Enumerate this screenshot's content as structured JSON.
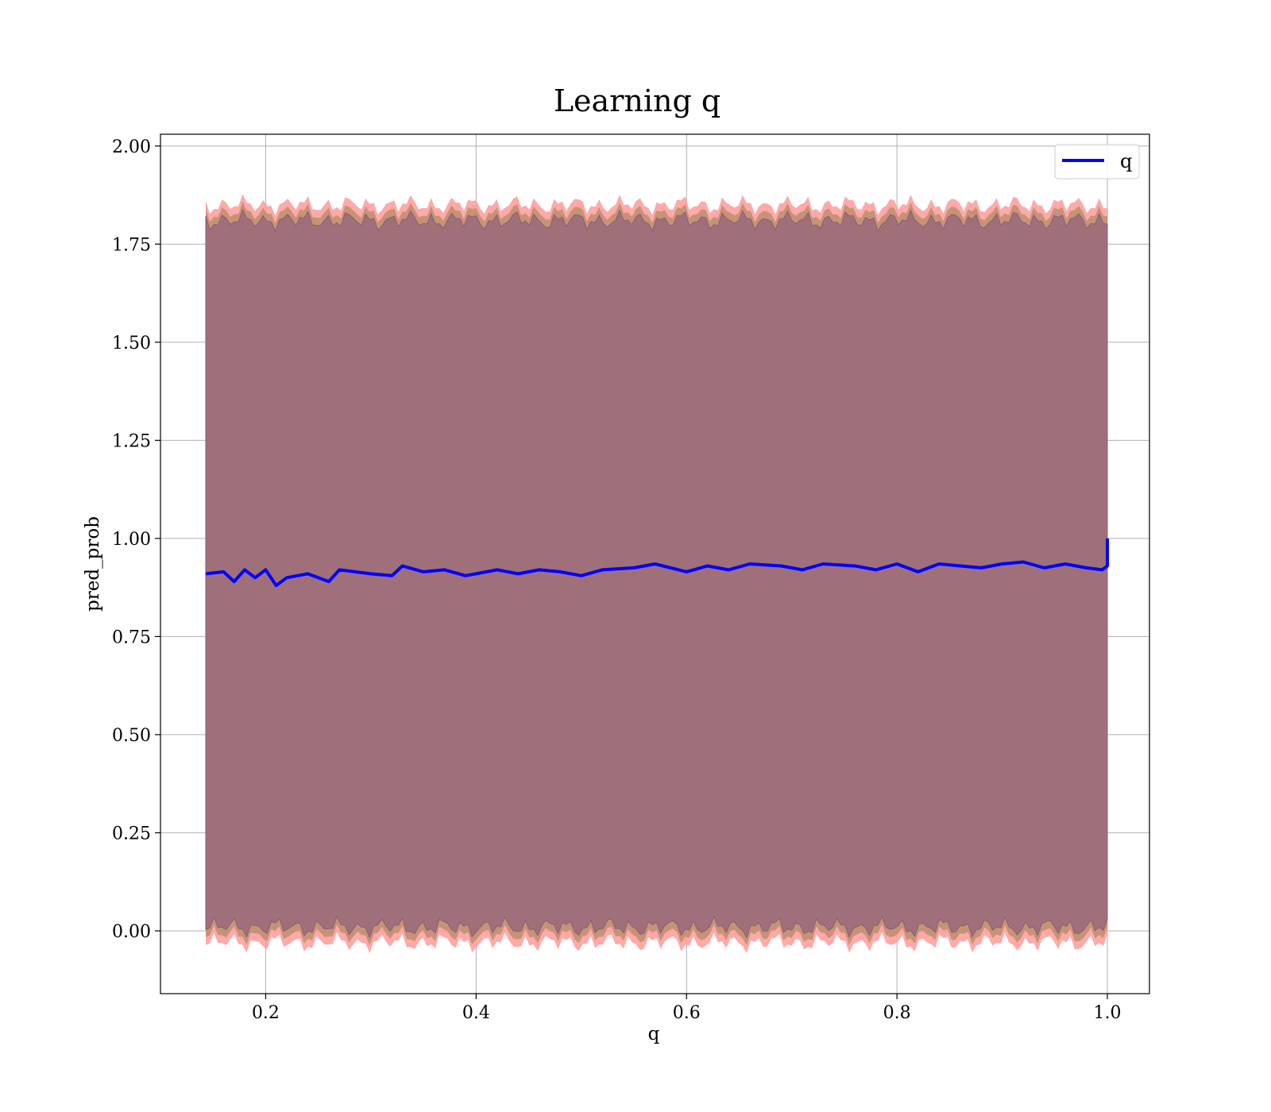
{
  "chart_data": {
    "type": "line",
    "title": "Learning q",
    "xlabel": "q",
    "ylabel": "pred_prob",
    "xlim": [
      0.1,
      1.04
    ],
    "ylim": [
      -0.16,
      2.03
    ],
    "xticks": [
      0.2,
      0.4,
      0.6,
      0.8,
      1.0
    ],
    "xtick_labels": [
      "0.2",
      "0.4",
      "0.6",
      "0.8",
      "1.0"
    ],
    "yticks": [
      0.0,
      0.25,
      0.5,
      0.75,
      1.0,
      1.25,
      1.5,
      1.75,
      2.0
    ],
    "ytick_labels": [
      "0.00",
      "0.25",
      "0.50",
      "0.75",
      "1.00",
      "1.25",
      "1.50",
      "1.75",
      "2.00"
    ],
    "grid": true,
    "legend": {
      "placement": "upper right",
      "entries": [
        "q"
      ]
    },
    "colors": {
      "line": "#0000ff",
      "outer_band": "#ff9a9a",
      "middle_band": "#c0906e",
      "inner_band": "#a0707a",
      "inner_band_edge": "#8a5a78"
    },
    "series": [
      {
        "name": "q",
        "x": [
          0.143,
          0.16,
          0.17,
          0.18,
          0.19,
          0.2,
          0.21,
          0.22,
          0.24,
          0.26,
          0.27,
          0.3,
          0.32,
          0.33,
          0.35,
          0.37,
          0.39,
          0.41,
          0.42,
          0.44,
          0.46,
          0.48,
          0.5,
          0.52,
          0.55,
          0.57,
          0.6,
          0.62,
          0.64,
          0.66,
          0.69,
          0.71,
          0.73,
          0.76,
          0.78,
          0.8,
          0.82,
          0.84,
          0.86,
          0.88,
          0.9,
          0.92,
          0.94,
          0.96,
          0.98,
          0.995,
          1.0,
          1.0
        ],
        "y": [
          0.91,
          0.915,
          0.89,
          0.92,
          0.9,
          0.92,
          0.88,
          0.9,
          0.91,
          0.89,
          0.92,
          0.91,
          0.905,
          0.93,
          0.915,
          0.92,
          0.905,
          0.915,
          0.92,
          0.91,
          0.92,
          0.915,
          0.905,
          0.92,
          0.925,
          0.935,
          0.915,
          0.93,
          0.92,
          0.935,
          0.93,
          0.92,
          0.935,
          0.93,
          0.92,
          0.935,
          0.915,
          0.935,
          0.93,
          0.925,
          0.935,
          0.94,
          0.925,
          0.935,
          0.925,
          0.92,
          0.93,
          1.0
        ],
        "band_inner": [
          1.81,
          0.01
        ],
        "band_middle": [
          1.83,
          -0.01
        ],
        "band_outer": [
          1.85,
          -0.03
        ]
      }
    ]
  }
}
